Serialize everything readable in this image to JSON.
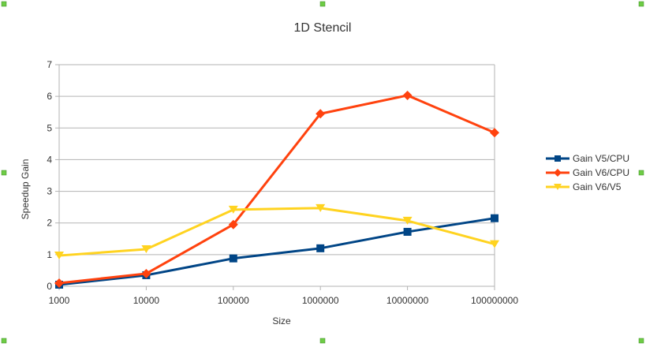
{
  "chart_data": {
    "type": "line",
    "title": "1D Stencil",
    "xlabel": "Size",
    "ylabel": "Speedup Gain",
    "categories": [
      "1000",
      "10000",
      "100000",
      "1000000",
      "10000000",
      "100000000"
    ],
    "ylim": [
      0,
      7
    ],
    "yticks": [
      "0",
      "1",
      "2",
      "3",
      "4",
      "5",
      "6",
      "7"
    ],
    "grid": true,
    "legend_position": "right",
    "series": [
      {
        "name": "Gain V5/CPU",
        "color": "#004586",
        "marker": "square",
        "values": [
          0.05,
          0.35,
          0.88,
          1.2,
          1.72,
          2.15
        ]
      },
      {
        "name": "Gain V6/CPU",
        "color": "#ff420e",
        "marker": "diamond",
        "values": [
          0.1,
          0.4,
          1.95,
          5.45,
          6.03,
          4.85
        ]
      },
      {
        "name": "Gain V6/V5",
        "color": "#ffd320",
        "marker": "triangle-down",
        "values": [
          0.97,
          1.17,
          2.42,
          2.47,
          2.07,
          1.33
        ]
      }
    ]
  },
  "colors": {
    "gridline": "#b3b3b3",
    "selection_handle": "#6ecc45"
  }
}
